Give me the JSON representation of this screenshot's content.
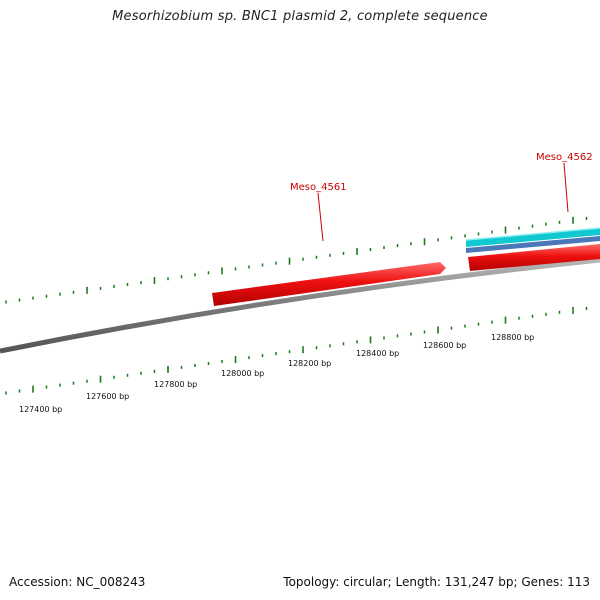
{
  "title": "Mesorhizobium sp. BNC1 plasmid 2, complete sequence",
  "footer": {
    "accession": "Accession: NC_008243",
    "summary": "Topology: circular; Length: 131,247 bp; Genes: 113"
  },
  "genes": [
    {
      "label": "Meso_4561"
    },
    {
      "label": "Meso_4562"
    }
  ],
  "ruler": {
    "labels": [
      "127400 bp",
      "127600 bp",
      "127800 bp",
      "128000 bp",
      "128200 bp",
      "128400 bp",
      "128600 bp",
      "128800 bp"
    ]
  },
  "colors": {
    "backbone": "#8a8a8a",
    "gene": "#e80000",
    "tick": "#1a7a1a",
    "gene_label": "#cc0000",
    "cyan_feature": "#10c8d0",
    "blue_feature": "#4a78b8"
  }
}
